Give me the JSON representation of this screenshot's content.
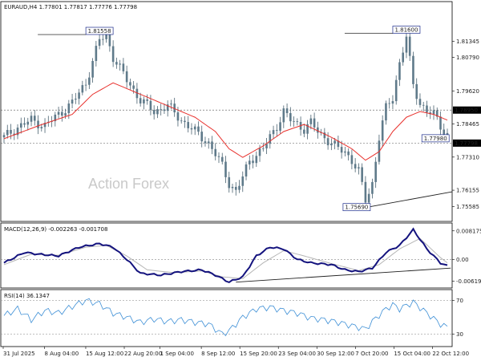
{
  "chart_data": [
    {
      "type": "candlestick",
      "symbol_header": "EURAUD,H4  1.77801 1.77817 1.77776 1.77798",
      "watermark": "Action Forex",
      "ylim": [
        1.7515,
        1.8265
      ],
      "y_ticks": [
        "1.81345",
        "1.80790",
        "1.79620",
        "1.78465",
        "1.77310",
        "1.76155",
        "1.75585"
      ],
      "y_tick_values": [
        1.81345,
        1.8079,
        1.7962,
        1.78465,
        1.7731,
        1.76155,
        1.75585
      ],
      "price_markers": [
        {
          "label": "1.78950",
          "value": 1.7895,
          "style": "dark"
        },
        {
          "label": "1.77798",
          "value": 1.77798,
          "style": "dark"
        }
      ],
      "annotations": [
        {
          "label": "1.81558",
          "index": 28,
          "value": 1.81558
        },
        {
          "label": "1.81600",
          "index": 118,
          "value": 1.816
        },
        {
          "label": "1.77980",
          "index": 123,
          "value": 1.7798
        },
        {
          "label": "1.75690",
          "index": 106,
          "value": 1.7569
        }
      ],
      "close_path": [
        [
          0,
          1.78
        ],
        [
          4,
          1.7835
        ],
        [
          8,
          1.786
        ],
        [
          12,
          1.784
        ],
        [
          16,
          1.788
        ],
        [
          20,
          1.792
        ],
        [
          24,
          1.799
        ],
        [
          28,
          1.814
        ],
        [
          30,
          1.8155
        ],
        [
          32,
          1.808
        ],
        [
          36,
          1.8
        ],
        [
          40,
          1.793
        ],
        [
          44,
          1.789
        ],
        [
          48,
          1.791
        ],
        [
          52,
          1.786
        ],
        [
          56,
          1.782
        ],
        [
          60,
          1.778
        ],
        [
          64,
          1.77
        ],
        [
          66,
          1.764
        ],
        [
          68,
          1.761
        ],
        [
          70,
          1.766
        ],
        [
          72,
          1.772
        ],
        [
          76,
          1.776
        ],
        [
          80,
          1.784
        ],
        [
          82,
          1.789
        ],
        [
          84,
          1.786
        ],
        [
          88,
          1.783
        ],
        [
          90,
          1.785
        ],
        [
          92,
          1.782
        ],
        [
          96,
          1.778
        ],
        [
          98,
          1.776
        ],
        [
          100,
          1.775
        ],
        [
          102,
          1.772
        ],
        [
          104,
          1.768
        ],
        [
          106,
          1.758
        ],
        [
          108,
          1.764
        ],
        [
          110,
          1.78
        ],
        [
          112,
          1.79
        ],
        [
          114,
          1.794
        ],
        [
          116,
          1.806
        ],
        [
          118,
          1.815
        ],
        [
          120,
          1.798
        ],
        [
          122,
          1.792
        ],
        [
          124,
          1.789
        ],
        [
          126,
          1.788
        ],
        [
          128,
          1.784
        ],
        [
          130,
          1.781
        ]
      ],
      "candle_count": 131,
      "moving_average": [
        [
          0,
          1.7795
        ],
        [
          10,
          1.784
        ],
        [
          20,
          1.788
        ],
        [
          26,
          1.795
        ],
        [
          32,
          1.799
        ],
        [
          40,
          1.795
        ],
        [
          48,
          1.791
        ],
        [
          56,
          1.787
        ],
        [
          62,
          1.782
        ],
        [
          66,
          1.776
        ],
        [
          70,
          1.773
        ],
        [
          76,
          1.777
        ],
        [
          82,
          1.782
        ],
        [
          88,
          1.7845
        ],
        [
          96,
          1.78
        ],
        [
          102,
          1.776
        ],
        [
          106,
          1.772
        ],
        [
          110,
          1.775
        ],
        [
          114,
          1.782
        ],
        [
          118,
          1.787
        ],
        [
          122,
          1.789
        ],
        [
          126,
          1.788
        ],
        [
          130,
          1.786
        ]
      ],
      "trendline": [
        [
          106,
          1.7555
        ],
        [
          130,
          1.761
        ]
      ]
    },
    {
      "type": "line",
      "header": "MACD(12,26,9) -0.002263 -0.001708",
      "ylim": [
        -0.0075,
        0.0095
      ],
      "y_ticks": [
        "0.008175",
        "0.00",
        "-0.006199"
      ],
      "y_tick_values": [
        0.008175,
        0.0,
        -0.006199
      ],
      "macd": [
        [
          0,
          -0.001
        ],
        [
          6,
          0.002
        ],
        [
          10,
          0.0015
        ],
        [
          16,
          0.001
        ],
        [
          22,
          0.0035
        ],
        [
          28,
          0.0045
        ],
        [
          32,
          0.0035
        ],
        [
          36,
          0.0
        ],
        [
          40,
          -0.004
        ],
        [
          46,
          -0.0045
        ],
        [
          52,
          -0.0035
        ],
        [
          58,
          -0.003
        ],
        [
          62,
          -0.0045
        ],
        [
          66,
          -0.0065
        ],
        [
          70,
          -0.005
        ],
        [
          74,
          0.001
        ],
        [
          78,
          0.0035
        ],
        [
          82,
          0.003
        ],
        [
          86,
          0.0
        ],
        [
          90,
          -0.001
        ],
        [
          96,
          -0.0015
        ],
        [
          100,
          -0.003
        ],
        [
          104,
          -0.0035
        ],
        [
          108,
          -0.0025
        ],
        [
          112,
          0.002
        ],
        [
          116,
          0.004
        ],
        [
          120,
          0.0085
        ],
        [
          124,
          0.003
        ],
        [
          128,
          -0.001
        ],
        [
          131,
          -0.0023
        ]
      ],
      "signal": [
        [
          0,
          -0.0015
        ],
        [
          8,
          0.0015
        ],
        [
          16,
          0.0012
        ],
        [
          24,
          0.0035
        ],
        [
          30,
          0.004
        ],
        [
          36,
          0.001
        ],
        [
          42,
          -0.003
        ],
        [
          50,
          -0.0038
        ],
        [
          58,
          -0.0033
        ],
        [
          64,
          -0.005
        ],
        [
          70,
          -0.0055
        ],
        [
          76,
          -0.001
        ],
        [
          82,
          0.0025
        ],
        [
          88,
          0.001
        ],
        [
          96,
          -0.0012
        ],
        [
          104,
          -0.0032
        ],
        [
          110,
          -0.0015
        ],
        [
          116,
          0.003
        ],
        [
          122,
          0.006
        ],
        [
          128,
          0.0005
        ],
        [
          131,
          -0.0017
        ]
      ],
      "trendline": [
        [
          68,
          -0.0065
        ],
        [
          131,
          -0.0025
        ]
      ]
    },
    {
      "type": "line",
      "header": "RSI(14) 36.1347",
      "ylim": [
        18,
        80
      ],
      "levels": [
        70,
        30
      ],
      "y_ticks": [
        "70",
        "30"
      ],
      "rsi": [
        [
          0,
          52
        ],
        [
          4,
          60
        ],
        [
          8,
          47
        ],
        [
          12,
          58
        ],
        [
          16,
          55
        ],
        [
          20,
          63
        ],
        [
          24,
          70
        ],
        [
          28,
          66
        ],
        [
          32,
          55
        ],
        [
          36,
          50
        ],
        [
          40,
          44
        ],
        [
          44,
          48
        ],
        [
          48,
          45
        ],
        [
          52,
          47
        ],
        [
          56,
          44
        ],
        [
          60,
          42
        ],
        [
          64,
          30
        ],
        [
          66,
          34
        ],
        [
          70,
          50
        ],
        [
          74,
          60
        ],
        [
          78,
          62
        ],
        [
          82,
          58
        ],
        [
          86,
          55
        ],
        [
          90,
          49
        ],
        [
          94,
          47
        ],
        [
          98,
          44
        ],
        [
          102,
          40
        ],
        [
          106,
          36
        ],
        [
          108,
          45
        ],
        [
          112,
          60
        ],
        [
          114,
          65
        ],
        [
          116,
          60
        ],
        [
          120,
          68
        ],
        [
          124,
          55
        ],
        [
          128,
          42
        ],
        [
          131,
          36
        ]
      ]
    }
  ],
  "x_axis_labels": [
    "31 Jul 2025",
    "8 Aug 04:00",
    "15 Aug 12:00",
    "22 Aug 20:00",
    "1 Sep 04:00",
    "8 Sep 12:00",
    "15 Sep 20:00",
    "23 Sep 04:00",
    "30 Sep 12:00",
    "7 Oct 20:00",
    "15 Oct 04:00",
    "22 Oct 12:00"
  ],
  "x_axis_label_index": [
    0,
    15,
    30,
    44,
    57,
    72,
    86,
    100,
    114,
    128,
    142,
    156
  ]
}
